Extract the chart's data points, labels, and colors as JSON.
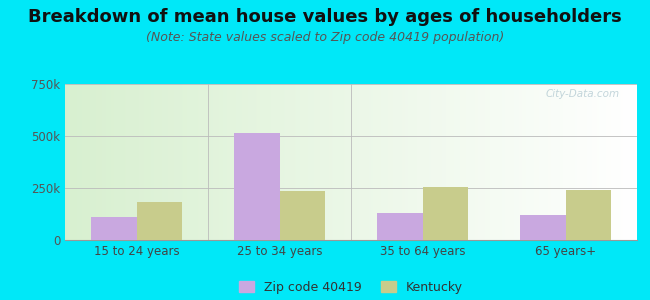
{
  "title": "Breakdown of mean house values by ages of householders",
  "subtitle": "(Note: State values scaled to Zip code 40419 population)",
  "categories": [
    "15 to 24 years",
    "25 to 34 years",
    "35 to 64 years",
    "65 years+"
  ],
  "zip_values": [
    110000,
    515000,
    130000,
    120000
  ],
  "ky_values": [
    185000,
    235000,
    255000,
    240000
  ],
  "zip_color": "#c9a8e0",
  "ky_color": "#c8cc8c",
  "background_outer": "#00e8f8",
  "ylim": [
    0,
    750000
  ],
  "yticks": [
    0,
    250000,
    500000,
    750000
  ],
  "ytick_labels": [
    "0",
    "250k",
    "500k",
    "750k"
  ],
  "legend_zip_label": "Zip code 40419",
  "legend_ky_label": "Kentucky",
  "watermark": "City-Data.com",
  "title_fontsize": 13,
  "subtitle_fontsize": 9,
  "axis_fontsize": 8.5,
  "legend_fontsize": 9,
  "bar_width": 0.32
}
